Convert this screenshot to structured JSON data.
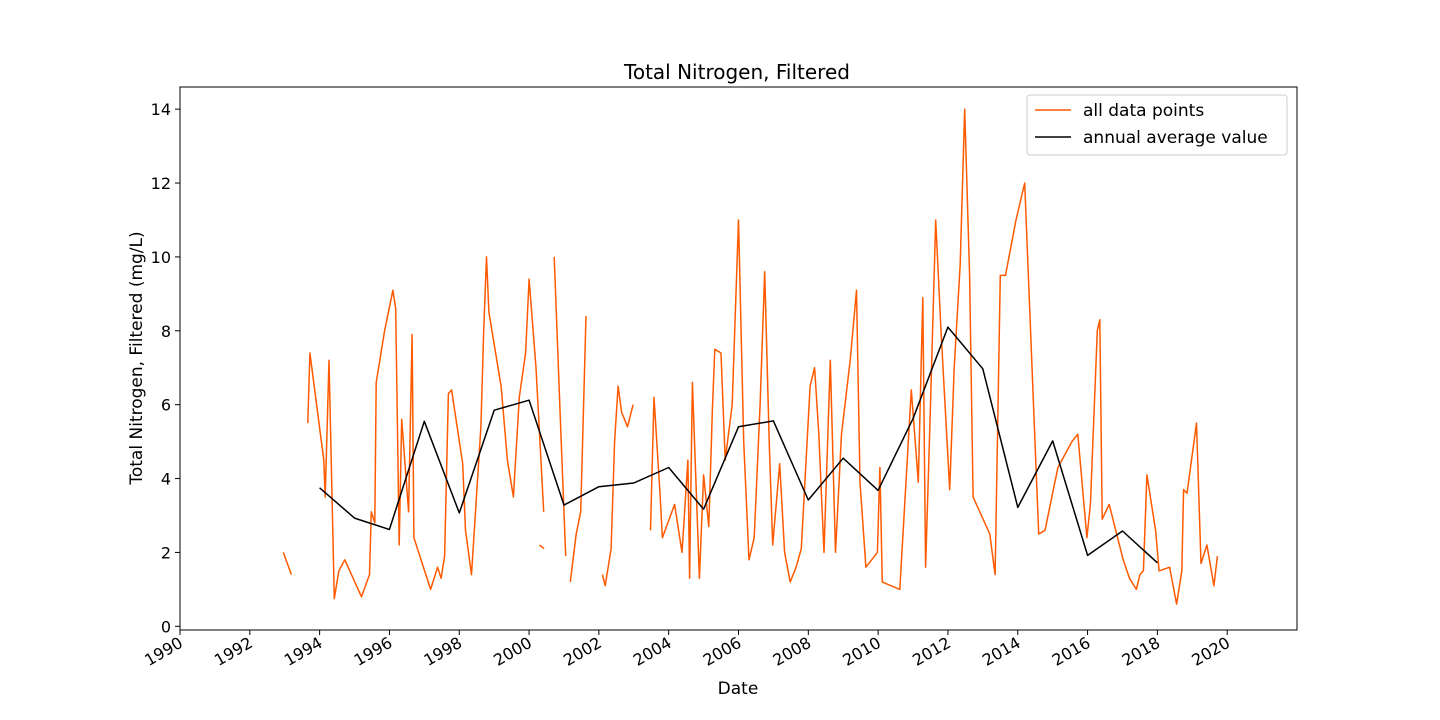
{
  "chart_data": {
    "type": "line",
    "title": "Total Nitrogen, Filtered",
    "xlabel": "Date",
    "ylabel": "Total Nitrogen, Filtered (mg/L)",
    "x_type": "date",
    "xlim": [
      1990.0,
      2022.0
    ],
    "ylim": [
      -0.1,
      14.6
    ],
    "xticks": [
      1990,
      1992,
      1994,
      1996,
      1998,
      2000,
      2002,
      2004,
      2006,
      2008,
      2010,
      2012,
      2014,
      2016,
      2018,
      2020
    ],
    "xtick_labels": [
      "1990",
      "1992",
      "1994",
      "1996",
      "1998",
      "2000",
      "2002",
      "2004",
      "2006",
      "2008",
      "2010",
      "2012",
      "2014",
      "2016",
      "2018",
      "2020"
    ],
    "yticks": [
      0,
      2,
      4,
      6,
      8,
      10,
      12,
      14
    ],
    "ytick_labels": [
      "0",
      "2",
      "4",
      "6",
      "8",
      "10",
      "12",
      "14"
    ],
    "grid": false,
    "legend": {
      "position": "upper right",
      "entries": [
        "all data points",
        "annual average value"
      ]
    },
    "series": [
      {
        "name": "all data points",
        "color": "#ff5a00",
        "segments": [
          [
            [
              1992.96,
              2.0
            ],
            [
              1993.19,
              1.4
            ]
          ],
          [
            [
              1993.66,
              5.5
            ],
            [
              1993.72,
              7.4
            ],
            [
              1994.12,
              4.5
            ],
            [
              1994.16,
              3.5
            ],
            [
              1994.27,
              7.2
            ],
            [
              1994.42,
              0.75
            ],
            [
              1994.55,
              1.5
            ],
            [
              1994.72,
              1.8
            ],
            [
              1995.2,
              0.8
            ],
            [
              1995.43,
              1.4
            ],
            [
              1995.48,
              3.1
            ],
            [
              1995.58,
              2.8
            ],
            [
              1995.62,
              6.6
            ],
            [
              1995.86,
              8.0
            ],
            [
              1996.1,
              9.1
            ],
            [
              1996.18,
              8.6
            ],
            [
              1996.28,
              2.2
            ],
            [
              1996.35,
              5.6
            ],
            [
              1996.55,
              3.1
            ],
            [
              1996.65,
              7.9
            ],
            [
              1996.7,
              2.4
            ],
            [
              1997.18,
              1.0
            ],
            [
              1997.38,
              1.6
            ],
            [
              1997.48,
              1.3
            ],
            [
              1997.58,
              1.9
            ],
            [
              1997.69,
              6.3
            ],
            [
              1997.78,
              6.4
            ],
            [
              1998.1,
              4.4
            ],
            [
              1998.18,
              2.6
            ],
            [
              1998.35,
              1.4
            ],
            [
              1998.62,
              5.4
            ],
            [
              1998.7,
              8.0
            ],
            [
              1998.78,
              10.0
            ],
            [
              1998.85,
              8.5
            ],
            [
              1999.2,
              6.5
            ],
            [
              1999.38,
              4.5
            ],
            [
              1999.55,
              3.5
            ],
            [
              1999.72,
              6.2
            ],
            [
              1999.9,
              7.4
            ],
            [
              2000.0,
              9.4
            ],
            [
              2000.2,
              7.0
            ],
            [
              2000.42,
              3.1
            ]
          ],
          [
            [
              2000.3,
              2.2
            ],
            [
              2000.43,
              2.1
            ]
          ],
          [
            [
              2000.72,
              10.0
            ],
            [
              2000.9,
              5.5
            ],
            [
              2001.05,
              1.9
            ]
          ],
          [
            [
              2001.18,
              1.2
            ],
            [
              2001.35,
              2.5
            ],
            [
              2001.48,
              3.1
            ],
            [
              2001.63,
              8.4
            ]
          ],
          [
            [
              2002.1,
              1.4
            ],
            [
              2002.18,
              1.1
            ],
            [
              2002.35,
              2.1
            ],
            [
              2002.45,
              5.0
            ],
            [
              2002.55,
              6.5
            ],
            [
              2002.65,
              5.8
            ],
            [
              2002.82,
              5.4
            ],
            [
              2002.98,
              6.0
            ]
          ],
          [
            [
              2003.48,
              2.6
            ],
            [
              2003.58,
              6.2
            ],
            [
              2003.75,
              3.6
            ],
            [
              2003.82,
              2.4
            ],
            [
              2004.17,
              3.3
            ],
            [
              2004.38,
              2.0
            ],
            [
              2004.55,
              4.5
            ],
            [
              2004.6,
              1.3
            ],
            [
              2004.68,
              6.6
            ],
            [
              2004.88,
              1.3
            ],
            [
              2005.0,
              4.1
            ],
            [
              2005.15,
              2.7
            ],
            [
              2005.25,
              5.8
            ],
            [
              2005.32,
              7.5
            ],
            [
              2005.5,
              7.4
            ],
            [
              2005.62,
              4.5
            ],
            [
              2005.82,
              6.0
            ],
            [
              2006.0,
              11.0
            ],
            [
              2006.15,
              5.0
            ],
            [
              2006.3,
              1.8
            ],
            [
              2006.45,
              2.4
            ],
            [
              2006.62,
              6.0
            ],
            [
              2006.75,
              9.6
            ],
            [
              2006.88,
              5.0
            ],
            [
              2006.98,
              2.2
            ],
            [
              2007.18,
              4.4
            ],
            [
              2007.32,
              2.0
            ],
            [
              2007.48,
              1.2
            ],
            [
              2007.65,
              1.6
            ],
            [
              2007.8,
              2.1
            ],
            [
              2008.05,
              6.5
            ],
            [
              2008.18,
              7.0
            ],
            [
              2008.3,
              5.2
            ],
            [
              2008.45,
              2.0
            ],
            [
              2008.63,
              7.2
            ],
            [
              2008.78,
              2.0
            ],
            [
              2008.95,
              5.2
            ],
            [
              2009.2,
              7.2
            ],
            [
              2009.38,
              9.1
            ],
            [
              2009.48,
              3.9
            ],
            [
              2009.65,
              1.6
            ],
            [
              2009.98,
              2.0
            ],
            [
              2010.05,
              4.3
            ],
            [
              2010.12,
              1.2
            ],
            [
              2010.62,
              1.0
            ],
            [
              2010.95,
              6.4
            ],
            [
              2011.15,
              3.9
            ],
            [
              2011.28,
              8.9
            ],
            [
              2011.36,
              1.6
            ],
            [
              2011.5,
              6.0
            ],
            [
              2011.65,
              11.0
            ],
            [
              2011.8,
              8.0
            ],
            [
              2012.05,
              3.7
            ],
            [
              2012.18,
              7.0
            ],
            [
              2012.35,
              9.8
            ],
            [
              2012.48,
              14.0
            ],
            [
              2012.62,
              9.5
            ],
            [
              2012.72,
              3.5
            ],
            [
              2013.2,
              2.5
            ],
            [
              2013.35,
              1.4
            ],
            [
              2013.5,
              9.5
            ],
            [
              2013.65,
              9.5
            ],
            [
              2013.95,
              11.0
            ],
            [
              2014.2,
              12.0
            ],
            [
              2014.45,
              6.0
            ],
            [
              2014.6,
              2.5
            ],
            [
              2014.78,
              2.6
            ],
            [
              2015.15,
              4.3
            ],
            [
              2015.55,
              5.0
            ],
            [
              2015.72,
              5.2
            ],
            [
              2015.98,
              2.4
            ],
            [
              2016.08,
              3.3
            ],
            [
              2016.28,
              8.0
            ],
            [
              2016.35,
              8.3
            ],
            [
              2016.42,
              2.9
            ],
            [
              2016.62,
              3.3
            ],
            [
              2017.02,
              1.8
            ],
            [
              2017.2,
              1.3
            ],
            [
              2017.4,
              1.0
            ],
            [
              2017.5,
              1.4
            ],
            [
              2017.6,
              1.5
            ],
            [
              2017.7,
              4.1
            ],
            [
              2017.95,
              2.6
            ],
            [
              2018.05,
              1.5
            ],
            [
              2018.35,
              1.6
            ],
            [
              2018.55,
              0.6
            ],
            [
              2018.7,
              1.5
            ],
            [
              2018.75,
              3.7
            ],
            [
              2018.85,
              3.6
            ],
            [
              2019.12,
              5.5
            ],
            [
              2019.25,
              1.7
            ],
            [
              2019.42,
              2.2
            ],
            [
              2019.62,
              1.1
            ],
            [
              2019.72,
              1.9
            ]
          ]
        ]
      },
      {
        "name": "annual average value",
        "color": "#000000",
        "x": [
          1994.0,
          1995.0,
          1996.0,
          1997.0,
          1998.0,
          1999.0,
          2000.0,
          2001.0,
          2002.0,
          2003.0,
          2004.0,
          2005.0,
          2006.0,
          2007.0,
          2008.0,
          2009.0,
          2010.0,
          2011.0,
          2012.0,
          2013.0,
          2014.0,
          2015.0,
          2016.0,
          2017.0,
          2018.0
        ],
        "values": [
          3.75,
          2.93,
          2.62,
          5.55,
          3.07,
          5.85,
          6.12,
          3.28,
          3.78,
          3.88,
          4.3,
          3.17,
          5.4,
          5.56,
          3.42,
          4.55,
          3.68,
          5.62,
          8.1,
          6.97,
          3.22,
          5.02,
          1.92,
          2.58,
          1.72
        ]
      }
    ]
  }
}
